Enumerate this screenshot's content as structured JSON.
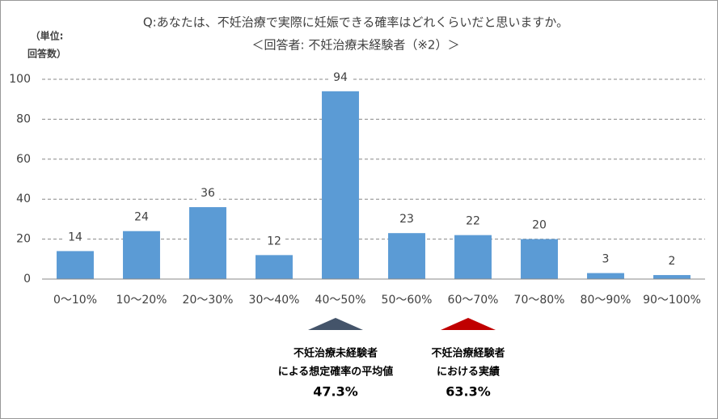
{
  "chart_data": {
    "type": "bar",
    "title": "Q:あなたは、不妊治療で実際に妊娠できる確率はどれくらいだと思いますか。",
    "subtitle": "＜回答者: 不妊治療未経験者（※2）＞",
    "unit_label": [
      "（単位:",
      "回答数）"
    ],
    "categories": [
      "0～10%",
      "10～20%",
      "20～30%",
      "30～40%",
      "40～50%",
      "50～60%",
      "60～70%",
      "70～80%",
      "80～90%",
      "90～100%"
    ],
    "values": [
      14,
      24,
      36,
      12,
      94,
      23,
      22,
      20,
      3,
      2
    ],
    "color": "#5b9bd5",
    "ylim": [
      0,
      100
    ],
    "yticks": [
      0,
      20,
      40,
      60,
      80,
      100
    ],
    "grid": true,
    "annotations": [
      {
        "category": 4,
        "color": "#44546a",
        "lines": [
          "不妊治療未経験者",
          "による想定確率の平均値",
          "47.3%"
        ]
      },
      {
        "category": 6,
        "color": "#c00000",
        "lines": [
          "不妊治療経験者",
          "における実績",
          "63.3%"
        ]
      }
    ]
  }
}
